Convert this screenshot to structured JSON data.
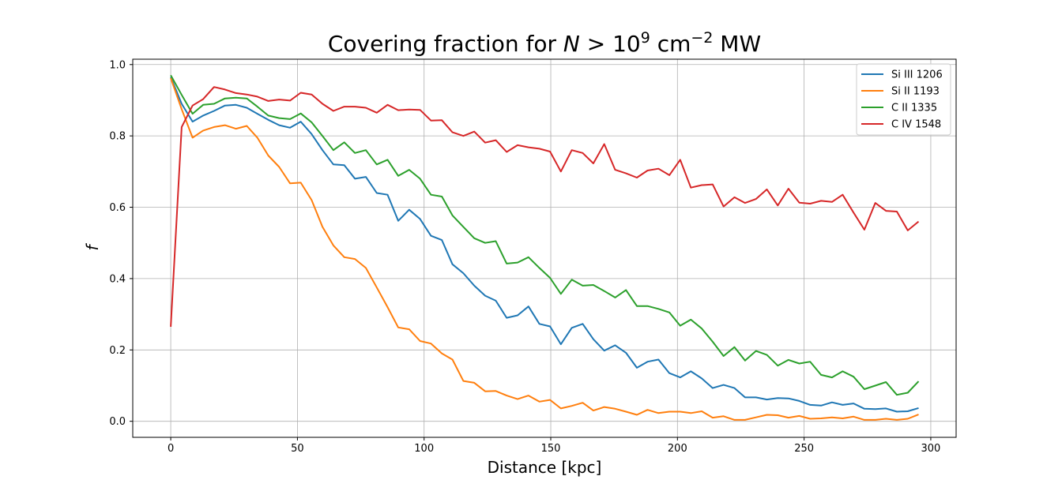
{
  "chart_data": {
    "type": "line",
    "title": {
      "prefix": "Covering fraction for ",
      "var": "N",
      "op": " > 10",
      "exp": "9",
      "unit": " cm",
      "unit_exp": "−2",
      "suffix": " MW"
    },
    "xlabel": "Distance [kpc]",
    "ylabel": "f",
    "xlim": [
      -15,
      310
    ],
    "ylim": [
      -0.045,
      1.015
    ],
    "xticks": [
      0,
      50,
      100,
      150,
      200,
      250,
      300
    ],
    "yticks": [
      0.0,
      0.2,
      0.4,
      0.6,
      0.8,
      1.0
    ],
    "xtick_labels": [
      "0",
      "50",
      "100",
      "150",
      "200",
      "250",
      "300"
    ],
    "ytick_labels": [
      "0.0",
      "0.2",
      "0.4",
      "0.6",
      "0.8",
      "1.0"
    ],
    "grid": true,
    "legend_position": "top-right",
    "x": [
      0,
      4.3,
      8.6,
      12.8,
      17.1,
      21.4,
      25.7,
      30.0,
      34.2,
      38.5,
      42.8,
      47.1,
      51.3,
      55.6,
      59.9,
      64.2,
      68.5,
      72.7,
      77.0,
      81.3,
      85.6,
      89.8,
      94.1,
      98.4,
      102.7,
      107.0,
      111.2,
      115.5,
      119.8,
      124.1,
      128.3,
      132.6,
      136.9,
      141.2,
      145.5,
      149.7,
      154.0,
      158.3,
      162.6,
      166.8,
      171.1,
      175.4,
      179.7,
      184.0,
      188.2,
      192.5,
      196.8,
      201.1,
      205.3,
      209.6,
      213.9,
      218.2,
      222.5,
      226.7,
      231.0,
      235.3,
      239.6,
      243.8,
      248.1,
      252.4,
      256.7,
      261.0,
      265.2,
      269.5,
      273.8,
      278.1,
      282.3,
      286.6,
      290.9,
      295.2
    ],
    "series": [
      {
        "name": "Si III 1206",
        "color": "#1f77b4",
        "values": [
          0.965,
          0.89,
          0.84,
          0.857,
          0.87,
          0.885,
          0.887,
          0.879,
          0.862,
          0.845,
          0.83,
          0.823,
          0.84,
          0.805,
          0.76,
          0.72,
          0.718,
          0.68,
          0.685,
          0.64,
          0.635,
          0.562,
          0.593,
          0.567,
          0.52,
          0.508,
          0.44,
          0.415,
          0.38,
          0.352,
          0.338,
          0.29,
          0.297,
          0.322,
          0.273,
          0.266,
          0.216,
          0.262,
          0.273,
          0.23,
          0.198,
          0.213,
          0.192,
          0.15,
          0.167,
          0.173,
          0.135,
          0.123,
          0.14,
          0.12,
          0.093,
          0.102,
          0.093,
          0.067,
          0.067,
          0.061,
          0.065,
          0.064,
          0.057,
          0.046,
          0.044,
          0.053,
          0.046,
          0.05,
          0.035,
          0.034,
          0.036,
          0.027,
          0.028,
          0.037
        ]
      },
      {
        "name": "Si II 1193",
        "color": "#ff7f0e",
        "values": [
          0.962,
          0.875,
          0.795,
          0.815,
          0.825,
          0.83,
          0.82,
          0.828,
          0.795,
          0.745,
          0.713,
          0.667,
          0.669,
          0.62,
          0.545,
          0.493,
          0.46,
          0.455,
          0.43,
          0.375,
          0.32,
          0.263,
          0.258,
          0.225,
          0.218,
          0.19,
          0.173,
          0.113,
          0.108,
          0.084,
          0.085,
          0.072,
          0.062,
          0.072,
          0.055,
          0.06,
          0.036,
          0.043,
          0.052,
          0.03,
          0.04,
          0.035,
          0.027,
          0.018,
          0.032,
          0.023,
          0.027,
          0.027,
          0.023,
          0.028,
          0.01,
          0.014,
          0.004,
          0.004,
          0.011,
          0.018,
          0.017,
          0.01,
          0.015,
          0.007,
          0.008,
          0.011,
          0.008,
          0.013,
          0.004,
          0.004,
          0.007,
          0.004,
          0.007,
          0.019
        ]
      },
      {
        "name": "C II 1335",
        "color": "#2ca02c",
        "values": [
          0.97,
          0.915,
          0.862,
          0.887,
          0.89,
          0.905,
          0.907,
          0.905,
          0.882,
          0.857,
          0.85,
          0.847,
          0.863,
          0.838,
          0.8,
          0.76,
          0.782,
          0.752,
          0.76,
          0.72,
          0.733,
          0.688,
          0.705,
          0.68,
          0.635,
          0.63,
          0.577,
          0.545,
          0.513,
          0.5,
          0.505,
          0.442,
          0.445,
          0.46,
          0.43,
          0.402,
          0.357,
          0.397,
          0.38,
          0.382,
          0.365,
          0.347,
          0.368,
          0.323,
          0.323,
          0.315,
          0.305,
          0.268,
          0.285,
          0.26,
          0.223,
          0.183,
          0.208,
          0.17,
          0.197,
          0.186,
          0.156,
          0.172,
          0.162,
          0.167,
          0.13,
          0.123,
          0.14,
          0.125,
          0.09,
          0.1,
          0.11,
          0.074,
          0.08,
          0.112
        ]
      },
      {
        "name": "C IV 1548",
        "color": "#d62728",
        "values": [
          0.265,
          0.825,
          0.885,
          0.903,
          0.937,
          0.93,
          0.92,
          0.916,
          0.91,
          0.898,
          0.902,
          0.899,
          0.921,
          0.916,
          0.89,
          0.87,
          0.882,
          0.882,
          0.879,
          0.865,
          0.887,
          0.872,
          0.874,
          0.873,
          0.843,
          0.844,
          0.81,
          0.8,
          0.812,
          0.781,
          0.788,
          0.755,
          0.774,
          0.768,
          0.764,
          0.756,
          0.7,
          0.76,
          0.752,
          0.723,
          0.777,
          0.705,
          0.695,
          0.683,
          0.703,
          0.708,
          0.69,
          0.733,
          0.655,
          0.662,
          0.664,
          0.602,
          0.628,
          0.612,
          0.623,
          0.65,
          0.605,
          0.652,
          0.613,
          0.61,
          0.618,
          0.615,
          0.635,
          0.585,
          0.537,
          0.612,
          0.59,
          0.588,
          0.535,
          0.56
        ]
      }
    ]
  }
}
